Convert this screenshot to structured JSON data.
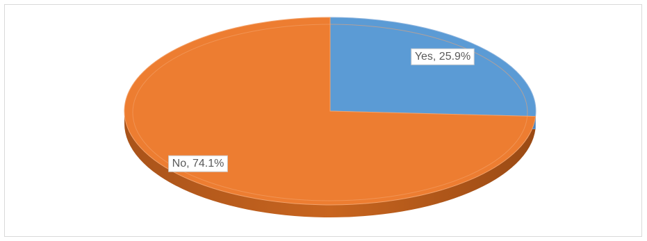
{
  "chart_data": {
    "type": "pie",
    "style": "3d",
    "categories": [
      "Yes",
      "No"
    ],
    "values": [
      25.9,
      74.1
    ],
    "unit": "%",
    "colors": [
      "#5b9bd5",
      "#ed7d31"
    ],
    "data_labels": [
      "Yes, 25.9%",
      "No, 74.1%"
    ],
    "title": "",
    "legend": "none"
  }
}
